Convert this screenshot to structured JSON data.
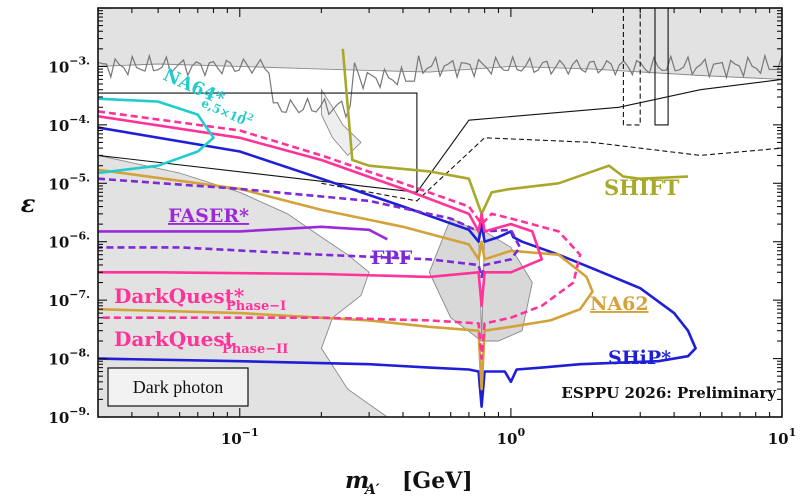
{
  "chart_data": {
    "type": "line",
    "title": "",
    "xlabel": "m_A′ [GeV]",
    "xlabel_main": "m",
    "xlabel_sub": "A′",
    "xlabel_unit": "[GeV]",
    "ylabel": "ε",
    "xscale": "log",
    "yscale": "log",
    "xlim": [
      0.03,
      10
    ],
    "ylim": [
      1e-09,
      0.01
    ],
    "x_ticks": [
      {
        "value": 0.1,
        "base": "10",
        "exp": "−1"
      },
      {
        "value": 1,
        "base": "10",
        "exp": "0"
      },
      {
        "value": 10,
        "base": "10",
        "exp": "1"
      }
    ],
    "y_ticks": [
      {
        "value": 1e-09,
        "base": "10",
        "exp": "−9."
      },
      {
        "value": 1e-08,
        "base": "10",
        "exp": "−8."
      },
      {
        "value": 1e-07,
        "base": "10",
        "exp": "−7."
      },
      {
        "value": 1e-06,
        "base": "10",
        "exp": "−6."
      },
      {
        "value": 1e-05,
        "base": "10",
        "exp": "−5."
      },
      {
        "value": 0.0001,
        "base": "10",
        "exp": "−4."
      },
      {
        "value": 0.001,
        "base": "10",
        "exp": "−3."
      }
    ],
    "grid": false,
    "legend_box": "Dark photon",
    "annotation": "ESPPU 2026: Preliminary",
    "excluded_regions_color": "#e2e2e2",
    "series": [
      {
        "name": "SHiP*",
        "color": "#1f1fd6",
        "style": "solid",
        "x": [
          0.03,
          0.1,
          0.2,
          0.4,
          0.7,
          0.76,
          0.78,
          0.8,
          0.9,
          1.0,
          1.02,
          1.1,
          1.5,
          2.0,
          3.0,
          4.0,
          4.5,
          4.8,
          4.5,
          3.5,
          2.5,
          1.8,
          1.3,
          1.05,
          1.0,
          0.95,
          0.8,
          0.78,
          0.76,
          0.7,
          0.5,
          0.3,
          0.1,
          0.03
        ],
        "y": [
          9e-05,
          3.5e-05,
          1.2e-05,
          4e-06,
          1.6e-06,
          1e-06,
          2e-06,
          1e-06,
          1.2e-06,
          1.5e-06,
          1.2e-06,
          1e-06,
          6e-07,
          3.5e-07,
          1.6e-07,
          6e-08,
          3e-08,
          1.5e-08,
          1.1e-08,
          9e-09,
          8.5e-09,
          8e-09,
          7e-09,
          6.5e-09,
          4e-09,
          6e-09,
          6e-09,
          1.5e-09,
          6e-09,
          6.5e-09,
          7e-09,
          8e-09,
          9e-09,
          1e-08
        ]
      },
      {
        "name": "NA62",
        "color": "#d4a23a",
        "style": "solid",
        "x": [
          0.03,
          0.1,
          0.2,
          0.4,
          0.7,
          0.76,
          0.78,
          0.8,
          1.0,
          1.5,
          1.9,
          2.0,
          1.8,
          1.4,
          1.0,
          0.8,
          0.78,
          0.76,
          0.5,
          0.3,
          0.1,
          0.03
        ],
        "y": [
          1.7e-05,
          8e-06,
          3.5e-06,
          1.8e-06,
          9e-07,
          5e-07,
          1e-06,
          5e-07,
          7e-07,
          6e-07,
          2.5e-07,
          1.4e-07,
          7e-08,
          4.5e-08,
          3.5e-08,
          3e-08,
          3e-09,
          3e-08,
          3.5e-08,
          4.5e-08,
          6e-08,
          7e-08
        ]
      },
      {
        "name": "SHIFT",
        "color": "#a8a82a",
        "style": "solid",
        "x": [
          0.24,
          0.26,
          0.3,
          0.5,
          0.7,
          0.78,
          0.85,
          1.0,
          1.5,
          2.3,
          2.6,
          3.0,
          4.5
        ],
        "y": [
          0.002,
          2.5e-05,
          2e-05,
          1.6e-05,
          1.2e-05,
          3e-06,
          7e-06,
          8e-06,
          1e-05,
          2e-05,
          1.3e-05,
          1.2e-05,
          1.3e-05
        ]
      },
      {
        "name": "FPF",
        "color": "#7d2ad6",
        "style": "dashed",
        "x": [
          0.03,
          0.1,
          0.3,
          0.6,
          0.76,
          0.78,
          0.8,
          1.0,
          1.08,
          1.0,
          0.8,
          0.78,
          0.76,
          0.5,
          0.2,
          0.06,
          0.03
        ],
        "y": [
          1.2e-05,
          8e-06,
          5e-06,
          2.5e-06,
          1.5e-06,
          2.5e-06,
          1.5e-06,
          1.6e-06,
          8e-07,
          5e-07,
          4e-07,
          2.5e-07,
          4e-07,
          5e-07,
          6e-07,
          8e-07,
          8e-07
        ]
      },
      {
        "name": "FASER*",
        "color": "#9b2ad6",
        "style": "solid",
        "x": [
          0.03,
          0.1,
          0.2,
          0.3,
          0.35
        ],
        "y": [
          1.5e-06,
          1.5e-06,
          1.8e-06,
          1.6e-06,
          1.1e-06
        ]
      },
      {
        "name": "DarkQuest* Phase-I",
        "color": "#ff3399",
        "style": "solid",
        "x": [
          0.03,
          0.1,
          0.2,
          0.4,
          0.7,
          0.76,
          0.78,
          0.8,
          1.0,
          1.2,
          1.3,
          1.0,
          0.8,
          0.78,
          0.76,
          0.5,
          0.2,
          0.05,
          0.03
        ],
        "y": [
          0.00014,
          6e-05,
          2.5e-05,
          8e-06,
          3e-06,
          1.5e-06,
          3e-06,
          1.5e-06,
          2e-06,
          1.5e-06,
          5e-07,
          3e-07,
          3e-07,
          8e-08,
          3e-07,
          2.5e-07,
          2.8e-07,
          3e-07,
          3e-07
        ]
      },
      {
        "name": "DarkQuest Phase-II",
        "color": "#ff3399",
        "style": "dashed",
        "x": [
          0.03,
          0.1,
          0.2,
          0.4,
          0.7,
          0.78,
          0.85,
          1.0,
          1.5,
          1.8,
          1.7,
          1.3,
          1.0,
          0.8,
          0.78,
          0.76,
          0.5,
          0.2,
          0.05,
          0.03
        ],
        "y": [
          0.00017,
          8e-05,
          3e-05,
          1e-05,
          4e-06,
          2e-06,
          3e-06,
          2.5e-06,
          1.5e-06,
          6e-07,
          2e-07,
          8e-08,
          5e-08,
          4e-08,
          1e-08,
          4e-08,
          4.5e-08,
          5e-08,
          5e-08,
          5e-08
        ]
      },
      {
        "name": "NA64* e,5×10^12",
        "color": "#22cccc",
        "style": "solid",
        "x": [
          0.03,
          0.05,
          0.07,
          0.08,
          0.07,
          0.05,
          0.03
        ],
        "y": [
          0.00028,
          0.00025,
          0.00015,
          6e-05,
          3.5e-05,
          2e-05,
          1.5e-05
        ]
      }
    ],
    "labels": {
      "shift": "SHIFT",
      "fpf": "FPF",
      "faser": "FASER*",
      "na62": "NA62",
      "ship": "SHiP*",
      "dq1_main": "DarkQuest*",
      "dq1_sub": "Phase−I",
      "dq2_main": "DarkQuest",
      "dq2_sub": "Phase−II",
      "na64_main": "NA64*",
      "na64_sub": "e,5×10",
      "na64_sup": "12"
    },
    "colors": {
      "ship": "#1f1fd6",
      "na62": "#d4a23a",
      "shift": "#a8a82a",
      "fpf": "#7d2ad6",
      "faser": "#9b2ad6",
      "darkquest": "#ff3399",
      "na64": "#22cccc"
    }
  }
}
